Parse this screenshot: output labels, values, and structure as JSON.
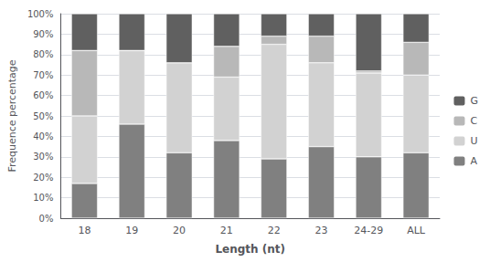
{
  "chart_data": {
    "type": "bar",
    "stacked": true,
    "categories": [
      "18",
      "19",
      "20",
      "21",
      "22",
      "23",
      "24-29",
      "ALL"
    ],
    "series": [
      {
        "name": "A",
        "color": "#808080",
        "values": [
          17,
          46,
          32,
          38,
          29,
          35,
          30,
          32
        ]
      },
      {
        "name": "U",
        "color": "#d2d2d2",
        "values": [
          33,
          36,
          44,
          31,
          56,
          41,
          41,
          38
        ]
      },
      {
        "name": "C",
        "color": "#b8b8b8",
        "values": [
          32,
          0,
          0,
          15,
          4,
          13,
          1,
          16
        ]
      },
      {
        "name": "G",
        "color": "#606060",
        "values": [
          18,
          18,
          24,
          16,
          11,
          11,
          28,
          14
        ]
      }
    ],
    "xlabel": "Length (nt)",
    "ylabel": "Frequence percentage",
    "ylim": [
      0,
      100
    ],
    "yticks": [
      {
        "value": 0,
        "label": "0%"
      },
      {
        "value": 10,
        "label": "10%"
      },
      {
        "value": 20,
        "label": "20%"
      },
      {
        "value": 30,
        "label": "30%"
      },
      {
        "value": 40,
        "label": "40%"
      },
      {
        "value": 50,
        "label": "50%"
      },
      {
        "value": 60,
        "label": "60%"
      },
      {
        "value": 70,
        "label": "70%"
      },
      {
        "value": 80,
        "label": "80%"
      },
      {
        "value": 90,
        "label": "90%"
      },
      {
        "value": 100,
        "label": "100%"
      }
    ],
    "grid": true,
    "legend": "right"
  }
}
